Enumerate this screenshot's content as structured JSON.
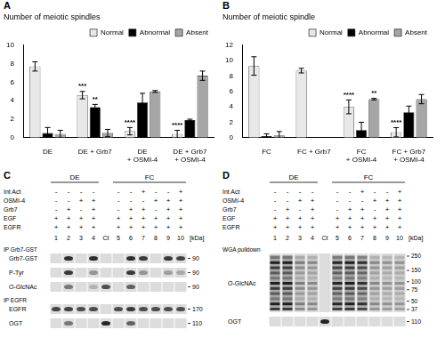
{
  "panel_labels": [
    "A",
    "B",
    "C",
    "D"
  ],
  "chart_data": [
    {
      "type": "bar",
      "title": "Number of meiotic spindles",
      "categories": [
        "DE",
        "DE + Grb7",
        "DE + OSMI-4",
        "DE + Grb7 + OSMI-4"
      ],
      "series": [
        {
          "name": "Normal",
          "color": "#e8e8e8",
          "values": [
            7.7,
            4.6,
            0.7,
            0.4
          ],
          "errors": [
            0.5,
            0.4,
            0.4,
            0.4
          ]
        },
        {
          "name": "Abnormal",
          "color": "#000000",
          "values": [
            0.5,
            3.3,
            3.8,
            1.9
          ],
          "errors": [
            0.6,
            0.3,
            1.0,
            0.1
          ]
        },
        {
          "name": "Absent",
          "color": "#a6a6a6",
          "values": [
            0.4,
            0.5,
            5.0,
            6.7
          ],
          "errors": [
            0.4,
            0.4,
            0.1,
            0.5
          ]
        }
      ],
      "ylim": [
        0,
        10
      ],
      "yticks": [
        0,
        2,
        4,
        6,
        8,
        10
      ],
      "grid": false,
      "legend": "top right",
      "annotations": [
        {
          "text": "***",
          "category": "DE + Grb7",
          "series": "Normal"
        },
        {
          "text": "**",
          "category": "DE + Grb7",
          "series": "Abnormal"
        },
        {
          "text": "****",
          "category": "DE + OSMI-4",
          "series": "Normal"
        },
        {
          "text": "****",
          "category": "DE + Grb7 + OSMI-4",
          "series": "Normal"
        }
      ]
    },
    {
      "type": "bar",
      "title": "Number of meiotic spindle",
      "categories": [
        "FC",
        "FC + Grb7",
        "FC + OSMI-4",
        "FC + Grb7 + OSMI-4"
      ],
      "series": [
        {
          "name": "Normal",
          "color": "#e8e8e8",
          "values": [
            9.3,
            8.7,
            4.0,
            0.7
          ],
          "errors": [
            1.2,
            0.3,
            0.9,
            0.6
          ]
        },
        {
          "name": "Abnormal",
          "color": "#000000",
          "values": [
            0.2,
            0,
            1.0,
            3.3
          ],
          "errors": [
            0.3,
            0,
            1.0,
            0.8
          ]
        },
        {
          "name": "Absent",
          "color": "#a6a6a6",
          "values": [
            0.3,
            0,
            5.0,
            5.0
          ],
          "errors": [
            0.5,
            0,
            0.1,
            0.6
          ]
        }
      ],
      "ylim": [
        0,
        12
      ],
      "yticks": [
        0,
        2,
        4,
        6,
        8,
        10,
        12
      ],
      "grid": false,
      "legend": "top right",
      "annotations": [
        {
          "text": "****",
          "category": "FC + OSMI-4",
          "series": "Normal"
        },
        {
          "text": "**",
          "category": "FC + OSMI-4",
          "series": "Absent"
        },
        {
          "text": "****",
          "category": "FC + Grb7 + OSMI-4",
          "series": "Normal"
        }
      ]
    }
  ],
  "blots": [
    {
      "lanes": [
        "1",
        "2",
        "3",
        "4",
        "Ct",
        "5",
        "6",
        "7",
        "8",
        "9",
        "10"
      ],
      "lane_groups": [
        "DE",
        "DE",
        "DE",
        "DE",
        null,
        "FC",
        "FC",
        "FC",
        "FC",
        "FC",
        "FC"
      ],
      "conditions": [
        {
          "name": "Int Act",
          "signs": [
            "-",
            "-",
            "-",
            "-",
            null,
            "-",
            "-",
            "+",
            "-",
            "-",
            "+"
          ]
        },
        {
          "name": "OSMI-4",
          "signs": [
            "-",
            "-",
            "+",
            "+",
            null,
            "-",
            "-",
            "-",
            "+",
            "+",
            "+"
          ]
        },
        {
          "name": "Grb7",
          "signs": [
            "-",
            "+",
            "-",
            "+",
            null,
            "-",
            "+",
            "+",
            "-",
            "+",
            "+"
          ]
        },
        {
          "name": "EGF",
          "signs": [
            "+",
            "+",
            "+",
            "+",
            null,
            "+",
            "+",
            "+",
            "+",
            "+",
            "+"
          ]
        },
        {
          "name": "EGFR",
          "signs": [
            "+",
            "+",
            "+",
            "+",
            null,
            "+",
            "+",
            "+",
            "+",
            "+",
            "+"
          ]
        }
      ],
      "unit": "[kDa]",
      "sections": [
        {
          "title": "IP Grb7-GST",
          "rows": [
            {
              "name": "Grb7-GST",
              "kda": 90,
              "bands": [
                0,
                0.85,
                0,
                0.85,
                0,
                0,
                0.85,
                0.8,
                0,
                0.8,
                0.75
              ]
            },
            {
              "name": "P-Tyr",
              "kda": 90,
              "bands": [
                0,
                0.8,
                0,
                0.35,
                0,
                0,
                0.8,
                0.35,
                0,
                0.3,
                0.25
              ]
            },
            {
              "name": "O-GlcNAc",
              "kda": 90,
              "bands": [
                0,
                0.5,
                0,
                0.2,
                0.7,
                0,
                0.6,
                0,
                0,
                0,
                0
              ]
            }
          ]
        },
        {
          "title": "IP EGFR",
          "rows": [
            {
              "name": "EGFR",
              "kda": 170,
              "bands": [
                0.75,
                0.75,
                0.7,
                0.7,
                0,
                0.7,
                0.8,
                0.7,
                0.7,
                0.7,
                0.7
              ]
            },
            {
              "name": "OGT",
              "kda": 110,
              "bands": [
                0,
                0.5,
                0,
                0,
                0.9,
                0,
                0.6,
                0,
                0,
                0,
                0
              ]
            }
          ]
        }
      ]
    },
    {
      "lanes": [
        "1",
        "2",
        "3",
        "4",
        "Ct",
        "5",
        "6",
        "7",
        "8",
        "9",
        "10"
      ],
      "lane_groups": [
        "DE",
        "DE",
        "DE",
        "DE",
        null,
        "FC",
        "FC",
        "FC",
        "FC",
        "FC",
        "FC"
      ],
      "conditions": [
        {
          "name": "Int Act",
          "signs": [
            "-",
            "-",
            "-",
            "-",
            null,
            "-",
            "-",
            "+",
            "-",
            "-",
            "+"
          ]
        },
        {
          "name": "OSMI-4",
          "signs": [
            "-",
            "-",
            "+",
            "+",
            null,
            "-",
            "-",
            "-",
            "+",
            "+",
            "+"
          ]
        },
        {
          "name": "Grb7",
          "signs": [
            "-",
            "+",
            "-",
            "+",
            null,
            "-",
            "+",
            "+",
            "-",
            "+",
            "+"
          ]
        },
        {
          "name": "EGF",
          "signs": [
            "+",
            "+",
            "+",
            "+",
            null,
            "+",
            "+",
            "+",
            "+",
            "+",
            "+"
          ]
        },
        {
          "name": "EGFR",
          "signs": [
            "+",
            "+",
            "+",
            "+",
            null,
            "+",
            "+",
            "+",
            "+",
            "+",
            "+"
          ]
        }
      ],
      "unit": "[kDa]",
      "sections": [
        {
          "title": "WGA pulldown",
          "rows": [
            {
              "name": "O-GlcNAc",
              "kda_markers": [
                250,
                150,
                100,
                75,
                50,
                37
              ],
              "bands": [
                0.9,
                0.9,
                0.4,
                0.35,
                0,
                0.85,
                0.9,
                0.8,
                0.35,
                0.3,
                0.3
              ]
            },
            {
              "name": "OGT",
              "kda": 110,
              "bands": [
                0,
                0,
                0,
                0,
                0.9,
                0,
                0,
                0,
                0,
                0,
                0
              ]
            }
          ]
        }
      ]
    }
  ]
}
